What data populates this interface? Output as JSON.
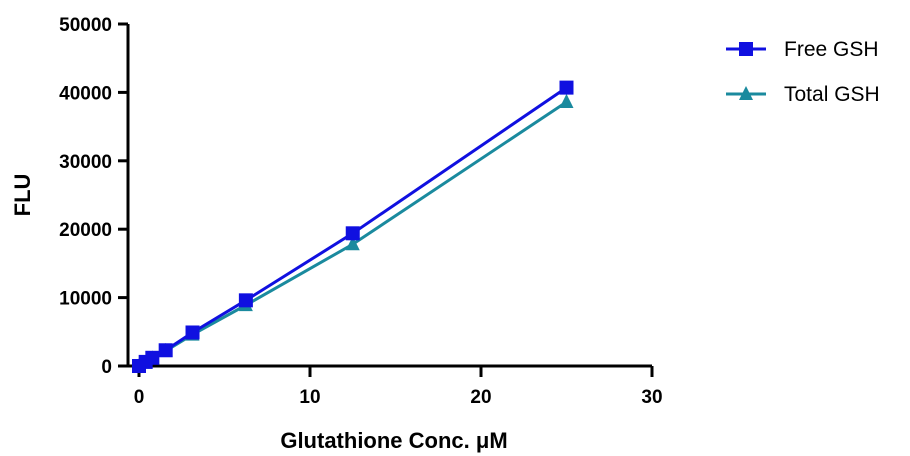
{
  "chart_data": {
    "type": "line",
    "xlabel": "Glutathione Conc. μM",
    "ylabel": "FLU",
    "xlim": [
      0,
      30
    ],
    "ylim": [
      0,
      50000
    ],
    "x_ticks": [
      "0",
      "10",
      "20",
      "30"
    ],
    "y_ticks": [
      "0",
      "10000",
      "20000",
      "30000",
      "40000",
      "50000"
    ],
    "grid": false,
    "legend_position": "top-right",
    "series": [
      {
        "name": "Free GSH",
        "color": "#1010e0",
        "marker": "square",
        "x": [
          0,
          0.39,
          0.78,
          1.56,
          3.13,
          6.25,
          12.5,
          25
        ],
        "y": [
          0,
          600,
          1200,
          2300,
          4900,
          9600,
          19400,
          40700
        ]
      },
      {
        "name": "Total GSH",
        "color": "#1a8a9e",
        "marker": "triangle",
        "x": [
          0,
          0.39,
          0.78,
          1.56,
          3.13,
          6.25,
          12.5,
          25
        ],
        "y": [
          0,
          500,
          1100,
          2200,
          4600,
          8900,
          17800,
          38600
        ]
      }
    ]
  }
}
